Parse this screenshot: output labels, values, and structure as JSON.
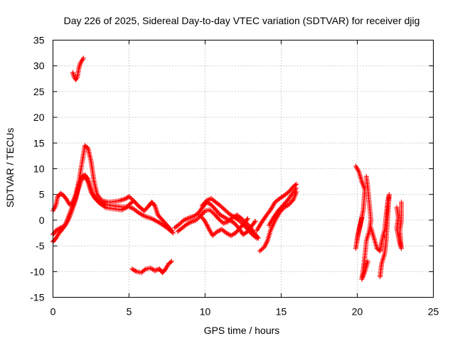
{
  "chart_data": {
    "type": "scatter",
    "title": "Day 226 of 2025, Sidereal Day-to-day VTEC variation (SDTVAR) for receiver djig",
    "xlabel": "GPS time / hours",
    "ylabel": "SDTVAR / TECUs",
    "xlim": [
      0,
      25
    ],
    "ylim": [
      -15,
      35
    ],
    "xticks": [
      0,
      5,
      10,
      15,
      20,
      25
    ],
    "yticks": [
      -15,
      -10,
      -5,
      0,
      5,
      10,
      15,
      20,
      25,
      30,
      35
    ],
    "grid": true,
    "marker": "+",
    "color": "#ff0000",
    "series": [
      {
        "name": "track-high",
        "points": [
          [
            1.3,
            28.7
          ],
          [
            1.4,
            27.8
          ],
          [
            1.5,
            27.3
          ],
          [
            1.6,
            27.8
          ],
          [
            1.7,
            29.5
          ],
          [
            1.8,
            30.5
          ],
          [
            1.9,
            31.0
          ],
          [
            2.0,
            31.5
          ]
        ]
      },
      {
        "name": "track-main-a",
        "points": [
          [
            0.0,
            1.8
          ],
          [
            0.2,
            3.0
          ],
          [
            0.3,
            4.5
          ],
          [
            0.5,
            5.2
          ],
          [
            0.7,
            4.8
          ],
          [
            0.9,
            4.0
          ],
          [
            1.1,
            3.0
          ],
          [
            1.3,
            3.5
          ],
          [
            1.5,
            5.0
          ],
          [
            1.7,
            7.5
          ],
          [
            1.9,
            11.0
          ],
          [
            2.1,
            14.5
          ],
          [
            2.3,
            14.0
          ],
          [
            2.5,
            11.5
          ],
          [
            2.7,
            7.5
          ],
          [
            2.9,
            5.0
          ],
          [
            3.2,
            3.8
          ],
          [
            3.6,
            3.5
          ],
          [
            4.0,
            3.6
          ],
          [
            4.4,
            3.8
          ],
          [
            4.8,
            4.2
          ],
          [
            5.0,
            4.6
          ],
          [
            5.3,
            3.8
          ],
          [
            5.6,
            2.8
          ],
          [
            6.0,
            1.8
          ],
          [
            6.3,
            2.8
          ],
          [
            6.5,
            3.5
          ],
          [
            6.7,
            2.8
          ],
          [
            6.9,
            1.0
          ],
          [
            7.2,
            0.0
          ],
          [
            7.5,
            -1.0
          ],
          [
            7.8,
            -2.0
          ]
        ]
      },
      {
        "name": "track-main-b",
        "points": [
          [
            0.0,
            -2.8
          ],
          [
            0.2,
            -2.0
          ],
          [
            0.5,
            -1.5
          ],
          [
            0.8,
            -1.0
          ],
          [
            1.0,
            0.0
          ],
          [
            1.2,
            1.5
          ],
          [
            1.5,
            4.0
          ],
          [
            1.7,
            7.0
          ],
          [
            1.9,
            8.5
          ],
          [
            2.1,
            8.8
          ],
          [
            2.3,
            8.0
          ],
          [
            2.5,
            6.0
          ],
          [
            2.7,
            4.5
          ],
          [
            3.0,
            3.5
          ],
          [
            3.5,
            3.0
          ],
          [
            4.0,
            2.8
          ],
          [
            4.5,
            2.6
          ],
          [
            5.0,
            2.6
          ],
          [
            5.3,
            2.2
          ],
          [
            5.6,
            1.5
          ],
          [
            6.0,
            0.8
          ],
          [
            6.5,
            0.3
          ],
          [
            7.0,
            -0.5
          ],
          [
            7.5,
            -1.5
          ],
          [
            7.9,
            -2.5
          ]
        ]
      },
      {
        "name": "track-main-c",
        "points": [
          [
            0.0,
            -4.2
          ],
          [
            0.2,
            -3.5
          ],
          [
            0.4,
            -2.5
          ],
          [
            0.6,
            -1.8
          ],
          [
            0.8,
            -1.0
          ],
          [
            1.0,
            0.5
          ],
          [
            1.3,
            2.8
          ],
          [
            1.6,
            5.5
          ],
          [
            1.9,
            8.0
          ],
          [
            2.1,
            8.4
          ],
          [
            2.3,
            7.5
          ],
          [
            2.5,
            5.5
          ],
          [
            2.8,
            4.2
          ],
          [
            3.1,
            3.2
          ],
          [
            3.5,
            2.4
          ],
          [
            4.0,
            2.2
          ],
          [
            4.5,
            2.0
          ],
          [
            4.8,
            2.4
          ],
          [
            5.0,
            3.0
          ],
          [
            5.2,
            3.5
          ]
        ]
      },
      {
        "name": "track-low",
        "points": [
          [
            5.2,
            -9.5
          ],
          [
            5.5,
            -10.0
          ],
          [
            5.8,
            -10.2
          ],
          [
            6.1,
            -9.5
          ],
          [
            6.4,
            -9.3
          ],
          [
            6.7,
            -9.8
          ],
          [
            7.0,
            -9.5
          ],
          [
            7.2,
            -10.2
          ],
          [
            7.4,
            -9.5
          ],
          [
            7.6,
            -8.5
          ],
          [
            7.8,
            -8.0
          ]
        ]
      },
      {
        "name": "track-mid-a",
        "points": [
          [
            8.0,
            -1.5
          ],
          [
            8.3,
            -0.8
          ],
          [
            8.6,
            0.0
          ],
          [
            9.0,
            0.5
          ],
          [
            9.3,
            0.8
          ],
          [
            9.6,
            1.5
          ],
          [
            9.9,
            2.8
          ],
          [
            10.1,
            3.5
          ],
          [
            10.4,
            3.0
          ],
          [
            10.7,
            2.0
          ],
          [
            11.0,
            1.0
          ],
          [
            11.3,
            0.5
          ],
          [
            11.6,
            0.0
          ],
          [
            11.9,
            -0.5
          ],
          [
            12.2,
            -1.5
          ],
          [
            12.5,
            -2.8
          ],
          [
            12.8,
            -2.2
          ],
          [
            13.1,
            -1.0
          ],
          [
            13.3,
            -0.2
          ]
        ]
      },
      {
        "name": "track-mid-b",
        "points": [
          [
            8.2,
            -2.2
          ],
          [
            8.5,
            -1.5
          ],
          [
            8.8,
            -0.8
          ],
          [
            9.1,
            -0.3
          ],
          [
            9.4,
            0.0
          ],
          [
            9.7,
            0.8
          ],
          [
            10.0,
            1.8
          ],
          [
            10.3,
            2.0
          ],
          [
            10.6,
            1.2
          ],
          [
            10.9,
            0.2
          ],
          [
            11.2,
            -0.6
          ],
          [
            11.5,
            -0.3
          ],
          [
            11.8,
            0.5
          ],
          [
            12.1,
            1.0
          ],
          [
            12.4,
            0.3
          ],
          [
            12.7,
            -0.5
          ],
          [
            13.0,
            -1.5
          ],
          [
            13.3,
            -2.8
          ],
          [
            13.5,
            -3.5
          ]
        ]
      },
      {
        "name": "track-mid-c",
        "points": [
          [
            9.6,
            1.0
          ],
          [
            9.9,
            0.2
          ],
          [
            10.1,
            -0.8
          ],
          [
            10.3,
            -2.0
          ],
          [
            10.5,
            -3.0
          ],
          [
            10.8,
            -2.2
          ],
          [
            11.1,
            -1.8
          ],
          [
            11.4,
            -2.5
          ],
          [
            11.7,
            -3.0
          ],
          [
            12.0,
            -2.5
          ],
          [
            12.3,
            -1.5
          ],
          [
            12.6,
            -0.5
          ],
          [
            12.8,
            0.3
          ]
        ]
      },
      {
        "name": "track-mid-d",
        "points": [
          [
            9.8,
            2.8
          ],
          [
            10.1,
            3.8
          ],
          [
            10.4,
            4.2
          ],
          [
            10.7,
            3.5
          ],
          [
            11.0,
            2.8
          ],
          [
            11.3,
            2.0
          ],
          [
            11.6,
            1.2
          ],
          [
            11.9,
            0.6
          ],
          [
            12.2,
            0.0
          ],
          [
            12.5,
            -0.8
          ],
          [
            12.8,
            -1.8
          ],
          [
            13.1,
            -2.8
          ],
          [
            13.4,
            -3.5
          ]
        ]
      },
      {
        "name": "track-rise-a",
        "points": [
          [
            13.4,
            -2.0
          ],
          [
            13.7,
            -0.5
          ],
          [
            14.0,
            0.8
          ],
          [
            14.3,
            2.0
          ],
          [
            14.6,
            3.5
          ],
          [
            14.9,
            4.2
          ],
          [
            15.2,
            4.8
          ],
          [
            15.5,
            5.5
          ],
          [
            15.8,
            6.5
          ],
          [
            16.0,
            7.0
          ]
        ]
      },
      {
        "name": "track-rise-b",
        "points": [
          [
            13.6,
            -6.0
          ],
          [
            13.9,
            -5.2
          ],
          [
            14.1,
            -4.0
          ],
          [
            14.3,
            -2.0
          ],
          [
            14.6,
            0.0
          ],
          [
            14.9,
            1.5
          ],
          [
            15.2,
            2.5
          ],
          [
            15.5,
            3.0
          ],
          [
            15.8,
            4.0
          ],
          [
            16.0,
            5.5
          ]
        ]
      },
      {
        "name": "track-rise-c",
        "points": [
          [
            14.2,
            -1.0
          ],
          [
            14.5,
            0.5
          ],
          [
            14.8,
            1.8
          ],
          [
            15.1,
            2.8
          ],
          [
            15.4,
            3.8
          ],
          [
            15.7,
            5.0
          ],
          [
            16.0,
            6.2
          ]
        ]
      },
      {
        "name": "track-late-a",
        "points": [
          [
            19.9,
            10.5
          ],
          [
            20.1,
            9.5
          ],
          [
            20.3,
            7.5
          ],
          [
            20.5,
            6.0
          ],
          [
            20.4,
            2.0
          ],
          [
            20.2,
            -1.0
          ],
          [
            20.0,
            -3.5
          ],
          [
            19.9,
            -5.5
          ],
          [
            20.1,
            -2.0
          ],
          [
            20.3,
            0.5
          ]
        ]
      },
      {
        "name": "track-late-b",
        "points": [
          [
            20.6,
            8.5
          ],
          [
            20.7,
            6.0
          ],
          [
            20.8,
            3.0
          ],
          [
            20.9,
            0.0
          ],
          [
            20.8,
            -2.0
          ],
          [
            20.6,
            -4.0
          ],
          [
            20.5,
            -7.0
          ],
          [
            20.4,
            -9.5
          ],
          [
            20.3,
            -11.5
          ],
          [
            20.5,
            -10.0
          ],
          [
            20.7,
            -8.0
          ]
        ]
      },
      {
        "name": "track-late-c",
        "points": [
          [
            20.9,
            -1.5
          ],
          [
            21.1,
            -3.5
          ],
          [
            21.3,
            -5.5
          ],
          [
            21.5,
            -6.0
          ],
          [
            21.6,
            -4.5
          ],
          [
            21.7,
            -3.0
          ],
          [
            21.8,
            -2.0
          ],
          [
            21.9,
            1.0
          ],
          [
            22.0,
            3.5
          ],
          [
            22.1,
            5.0
          ],
          [
            21.9,
            -4.0
          ],
          [
            21.8,
            -6.5
          ],
          [
            21.6,
            -8.5
          ],
          [
            21.5,
            -11.0
          ]
        ]
      },
      {
        "name": "track-late-d",
        "points": [
          [
            22.6,
            2.5
          ],
          [
            22.7,
            0.5
          ],
          [
            22.6,
            -1.5
          ],
          [
            22.7,
            -3.0
          ],
          [
            22.8,
            -4.5
          ],
          [
            22.9,
            -5.5
          ],
          [
            22.8,
            -2.0
          ],
          [
            22.9,
            0.0
          ],
          [
            22.9,
            3.5
          ]
        ]
      }
    ]
  }
}
